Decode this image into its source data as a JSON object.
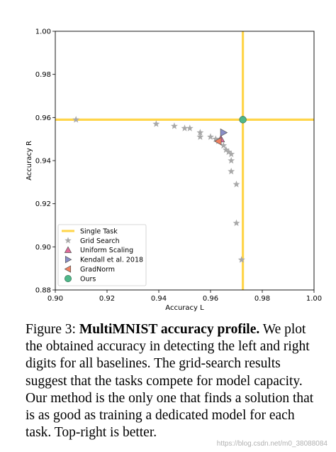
{
  "chart_data": {
    "type": "scatter",
    "xlabel": "Accuracy L",
    "ylabel": "Accuracy R",
    "xlim": [
      0.9,
      1.0
    ],
    "ylim": [
      0.88,
      1.0
    ],
    "x_ticks": [
      "0.90",
      "0.92",
      "0.94",
      "0.96",
      "0.98",
      "1.00"
    ],
    "y_ticks": [
      "0.88",
      "0.90",
      "0.92",
      "0.94",
      "0.96",
      "0.98",
      "1.00"
    ],
    "grid": false,
    "legend_placement": "lower-left",
    "single_task": {
      "name": "Single Task",
      "x": 0.9725,
      "y": 0.959,
      "color": "#ffd54a"
    },
    "series": [
      {
        "name": "Grid Search",
        "marker": "star",
        "color": "#a8a8a8",
        "points": [
          [
            0.908,
            0.959
          ],
          [
            0.939,
            0.957
          ],
          [
            0.946,
            0.956
          ],
          [
            0.95,
            0.955
          ],
          [
            0.952,
            0.955
          ],
          [
            0.956,
            0.953
          ],
          [
            0.956,
            0.951
          ],
          [
            0.96,
            0.951
          ],
          [
            0.962,
            0.95
          ],
          [
            0.963,
            0.949
          ],
          [
            0.965,
            0.947
          ],
          [
            0.966,
            0.945
          ],
          [
            0.967,
            0.944
          ],
          [
            0.968,
            0.943
          ],
          [
            0.968,
            0.94
          ],
          [
            0.968,
            0.935
          ],
          [
            0.97,
            0.929
          ],
          [
            0.97,
            0.911
          ],
          [
            0.972,
            0.894
          ]
        ]
      },
      {
        "name": "Uniform Scaling",
        "marker": "triangle-up",
        "color": "#e06a9a",
        "points": [
          [
            0.964,
            0.95
          ]
        ]
      },
      {
        "name": "Kendall et al. 2018",
        "marker": "triangle-right",
        "color": "#8a8fc8",
        "points": [
          [
            0.965,
            0.953
          ]
        ]
      },
      {
        "name": "GradNorm",
        "marker": "triangle-left",
        "color": "#f08060",
        "points": [
          [
            0.963,
            0.949
          ]
        ]
      },
      {
        "name": "Ours",
        "marker": "circle",
        "color": "#4fb88a",
        "points": [
          [
            0.9725,
            0.959
          ]
        ]
      }
    ]
  },
  "caption": {
    "number": "Figure 3:",
    "title": "MultiMNIST accuracy profile.",
    "body": "We plot the obtained accuracy in detecting the left and right digits for all baselines. The grid-search results suggest that the tasks compete for model capacity. Our method is the only one that finds a solution that is as good as training a dedicated model for each task. Top-right is better."
  },
  "watermark": "https://blog.csdn.net/m0_38088084"
}
